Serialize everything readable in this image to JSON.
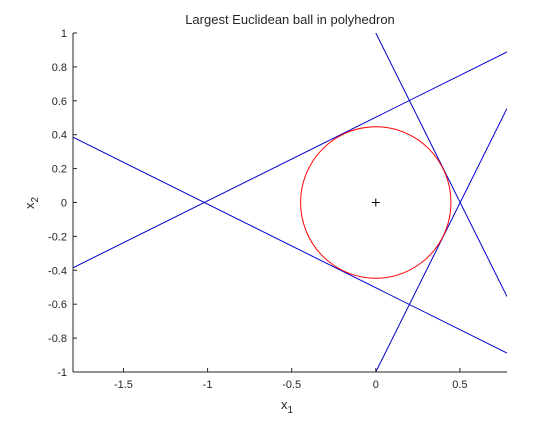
{
  "chart_data": {
    "type": "line",
    "title": "Largest Euclidean ball in polyhedron",
    "xlabel_base": "x",
    "xlabel_sub": "1",
    "ylabel_base": "x",
    "ylabel_sub": "2",
    "xlim": [
      -1.8,
      0.78
    ],
    "ylim": [
      -1,
      1
    ],
    "x_ticks": [
      -1.5,
      -1,
      -0.5,
      0,
      0.5
    ],
    "x_tick_labels": [
      "-1.5",
      "-1",
      "-0.5",
      "0",
      "0.5"
    ],
    "y_ticks": [
      -1,
      -0.8,
      -0.6,
      -0.4,
      -0.2,
      0,
      0.2,
      0.4,
      0.6,
      0.8,
      1
    ],
    "y_tick_labels": [
      "-1",
      "-0.8",
      "-0.6",
      "-0.4",
      "-0.2",
      "0",
      "0.2",
      "0.4",
      "0.6",
      "0.8",
      "1"
    ],
    "grid": false,
    "colors": {
      "lines": "#0000cc",
      "circle": "#ff0000",
      "center": "#000000",
      "axes": "#262626"
    },
    "lines": [
      {
        "x": [
          -1.8,
          0.78
        ],
        "y": [
          -0.385,
          0.888
        ]
      },
      {
        "x": [
          -1.8,
          0.78
        ],
        "y": [
          0.385,
          -0.888
        ]
      },
      {
        "x": [
          0.0,
          0.78
        ],
        "y": [
          1.0,
          -0.555
        ]
      },
      {
        "x": [
          0.0,
          0.78
        ],
        "y": [
          -1.0,
          0.555
        ]
      }
    ],
    "circle": {
      "center": [
        0,
        0
      ],
      "radius": 0.447
    },
    "center_marker": {
      "x": 0,
      "y": 0,
      "symbol": "+"
    }
  }
}
